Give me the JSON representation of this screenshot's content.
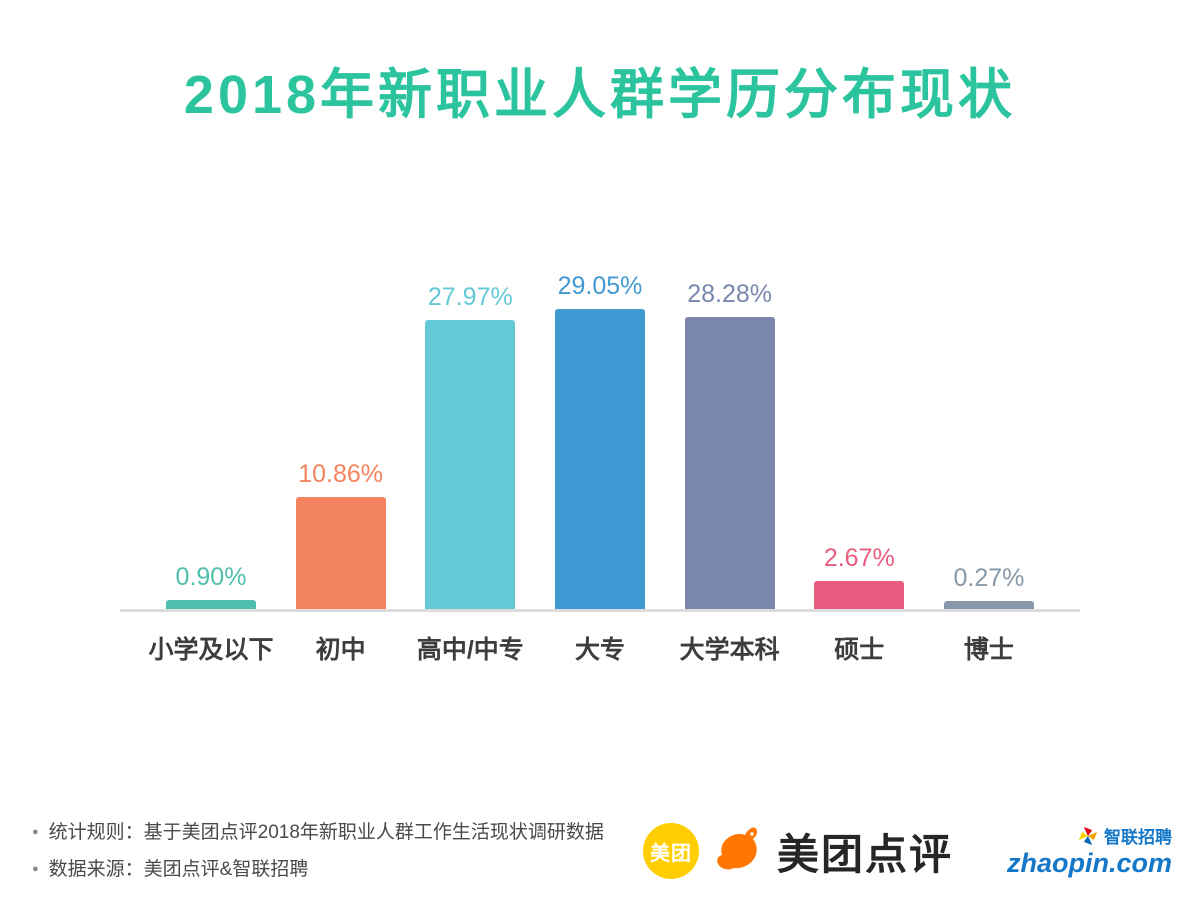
{
  "title": "2018年新职业人群学历分布现状",
  "chart_data": {
    "type": "bar",
    "title": "2018年新职业人群学历分布现状",
    "categories": [
      "小学及以下",
      "初中",
      "高中/中专",
      "大专",
      "大学本科",
      "硕士",
      "博士"
    ],
    "values": [
      0.9,
      10.86,
      27.97,
      29.05,
      28.28,
      2.67,
      0.27
    ],
    "value_labels": [
      "0.90%",
      "10.86%",
      "27.97%",
      "29.05%",
      "28.28%",
      "2.67%",
      "0.27%"
    ],
    "bar_colors": [
      "#4FBFAE",
      "#F4835F",
      "#63C9D6",
      "#4199D3",
      "#7987AE",
      "#E85D7F",
      "#8798A9"
    ],
    "xlabel": "",
    "ylabel": "",
    "ylim": [
      0,
      30
    ],
    "unit": "%",
    "grid": false,
    "legend": "none"
  },
  "footer": {
    "bullet": "●",
    "notes": [
      "统计规则：基于美团点评2018年新职业人群工作生活现状调研数据",
      "数据来源：美团点评&智联招聘"
    ]
  },
  "logos": {
    "meituan_badge": "美团",
    "brand_text": "美团点评",
    "zhaopin_name": "智联招聘",
    "zhaopin_url": "zhaopin.com"
  },
  "colors": {
    "title": "#2BC49E",
    "axis_line": "#DCDCDC",
    "category_label": "#3D3D3D",
    "note_text": "#4A4A4A",
    "meituan_yellow": "#FFCD00",
    "kangaroo_orange": "#FF7700",
    "zhaopin_blue": "#1477C8"
  }
}
